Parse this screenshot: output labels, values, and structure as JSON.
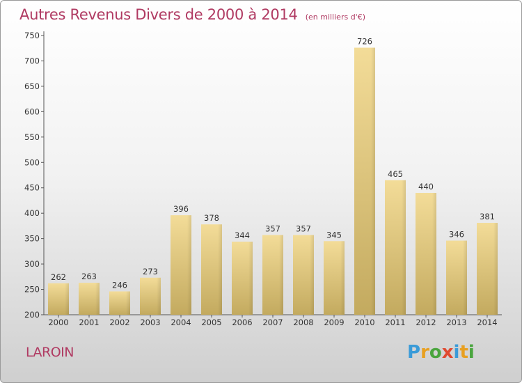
{
  "header": {
    "title": "Autres Revenus Divers de 2000 à 2014",
    "subtitle": "(en milliers d'€)"
  },
  "footer": {
    "place": "LAROIN",
    "logo_text": "Proxiti",
    "logo_letter_colors": [
      "#3a9bd8",
      "#e8a021",
      "#4aa53e",
      "#e0492f",
      "#3a9bd8",
      "#e8a021",
      "#4aa53e"
    ]
  },
  "chart_data": {
    "type": "bar",
    "title": "Autres Revenus Divers de 2000 à 2014",
    "subtitle": "(en milliers d'€)",
    "categories": [
      "2000",
      "2001",
      "2002",
      "2003",
      "2004",
      "2005",
      "2006",
      "2007",
      "2008",
      "2009",
      "2010",
      "2011",
      "2012",
      "2013",
      "2014"
    ],
    "values": [
      262,
      263,
      246,
      273,
      396,
      378,
      344,
      357,
      357,
      345,
      726,
      465,
      440,
      346,
      381
    ],
    "ylim": [
      200,
      750
    ],
    "yticks": [
      200,
      250,
      300,
      350,
      400,
      450,
      500,
      550,
      600,
      650,
      700,
      750
    ],
    "xlabel": "",
    "ylabel": "",
    "grid": false,
    "bar_color_top": "#f3dc98",
    "bar_color_bottom": "#c3aa5f"
  }
}
